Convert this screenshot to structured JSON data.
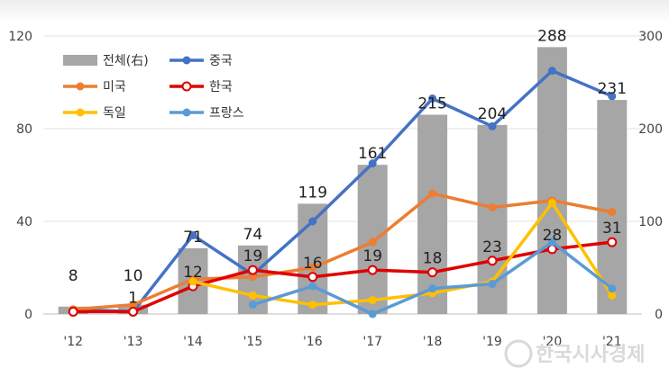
{
  "chart_data": {
    "type": "bar+line",
    "categories": [
      "'12",
      "'13",
      "'14",
      "'15",
      "'16",
      "'17",
      "'18",
      "'19",
      "'20",
      "'21"
    ],
    "left_axis": {
      "ylim": [
        0,
        120
      ],
      "ticks": [
        "0",
        "40",
        "80",
        "120"
      ]
    },
    "right_axis": {
      "ylim": [
        0,
        300
      ],
      "ticks": [
        "0",
        "100",
        "200",
        "300"
      ]
    },
    "grid": true,
    "legend_position": "top-left",
    "bars": {
      "name": "전체(右)",
      "axis": "right",
      "color": "#a6a6a6",
      "values": [
        8,
        10,
        71,
        74,
        119,
        161,
        215,
        204,
        288,
        231
      ],
      "labels": [
        "8",
        "10",
        "71",
        "74",
        "119",
        "161",
        "215",
        "204",
        "288",
        "231"
      ]
    },
    "series": [
      {
        "name": "중국",
        "color": "#4472c4",
        "marker": "filled",
        "values": [
          2,
          1,
          34,
          17,
          40,
          65,
          93,
          81,
          105,
          94
        ]
      },
      {
        "name": "미국",
        "color": "#ed7d31",
        "marker": "filled",
        "values": [
          2,
          4,
          15,
          16,
          20,
          31,
          52,
          46,
          49,
          44
        ]
      },
      {
        "name": "한국",
        "color": "#e00000",
        "marker": "hollow",
        "values": [
          1,
          1,
          12,
          19,
          16,
          19,
          18,
          23,
          28,
          31
        ],
        "labels": [
          "",
          "1",
          "12",
          "19",
          "16",
          "19",
          "18",
          "23",
          "28",
          "31"
        ]
      },
      {
        "name": "독일",
        "color": "#ffc000",
        "marker": "filled",
        "values": [
          null,
          null,
          14,
          8,
          4,
          6,
          9,
          14,
          48,
          8
        ]
      },
      {
        "name": "프랑스",
        "color": "#5b9bd5",
        "marker": "filled",
        "values": [
          null,
          null,
          null,
          4,
          12,
          0,
          11,
          13,
          31,
          11
        ]
      }
    ]
  },
  "watermark": "한국시사경제"
}
